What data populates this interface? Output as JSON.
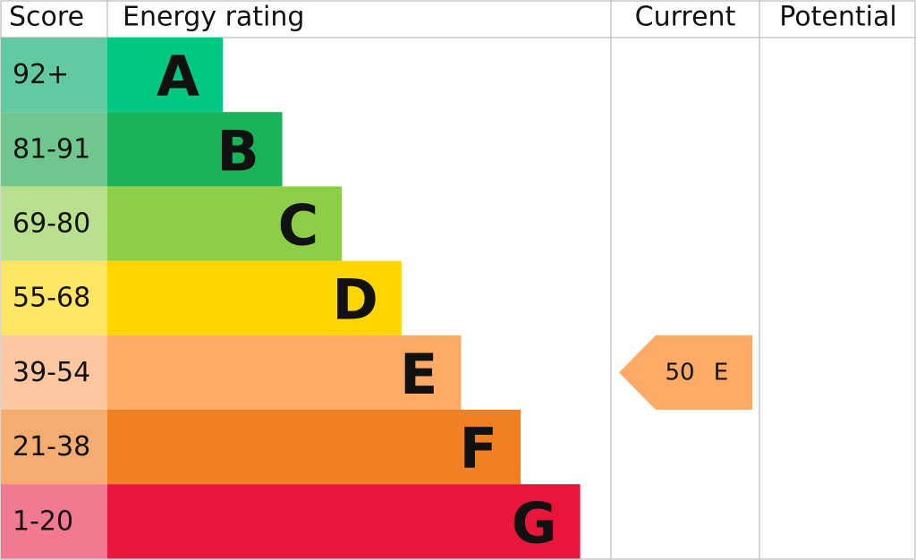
{
  "header": [
    "Score",
    "Energy rating",
    "Current",
    "Potential"
  ],
  "bands": [
    {
      "score": "92+",
      "rating": "A",
      "color": "#00c781",
      "score_color": "#62c9a3"
    },
    {
      "score": "81-91",
      "rating": "B",
      "color": "#19b459",
      "score_color": "#6fc78e"
    },
    {
      "score": "69-80",
      "rating": "C",
      "color": "#8dce46",
      "score_color": "#b9e08e"
    },
    {
      "score": "55-68",
      "rating": "D",
      "color": "#ffd500",
      "score_color": "#ffe563"
    },
    {
      "score": "39-54",
      "rating": "E",
      "color": "#fcaa65",
      "score_color": "#fdc8a1"
    },
    {
      "score": "21-38",
      "rating": "F",
      "color": "#ef8023",
      "score_color": "#f4ac70"
    },
    {
      "score": "1-20",
      "rating": "G",
      "color": "#e9153b",
      "score_color": "#f27a90"
    }
  ],
  "current": {
    "score": 50,
    "rating": "E"
  }
}
